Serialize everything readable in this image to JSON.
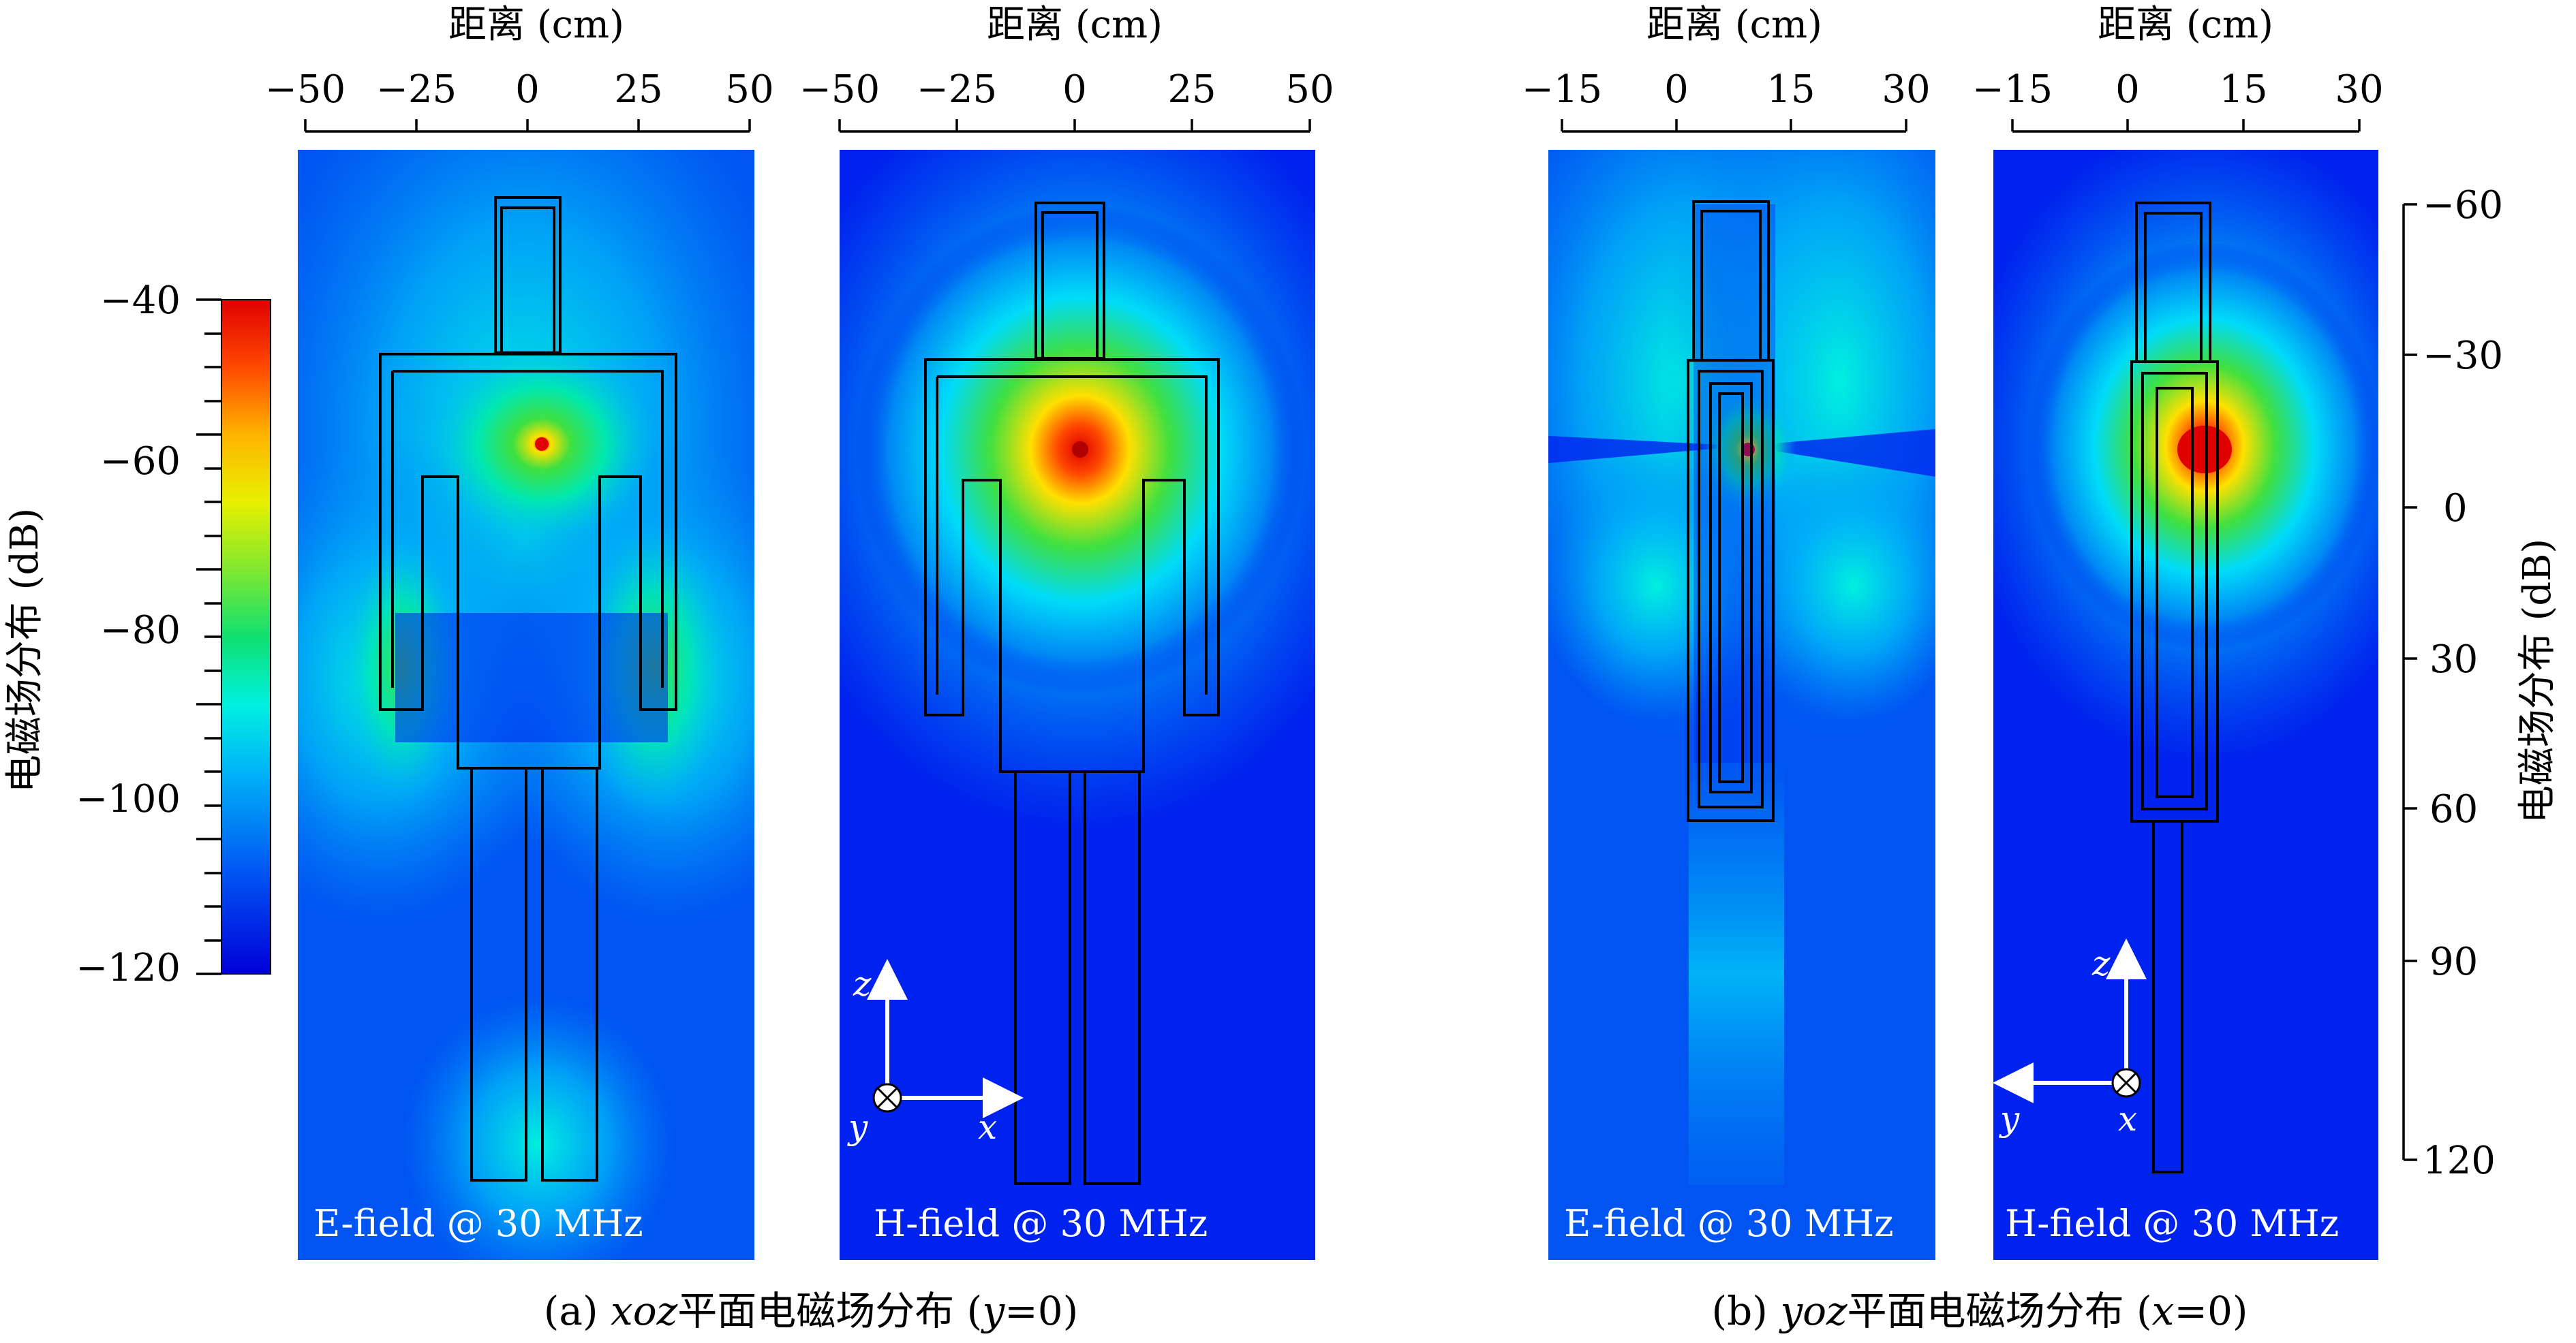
{
  "top_axes": [
    {
      "title": "距离 (cm)",
      "ticks": [
        "−50",
        "−25",
        "0",
        "25",
        "50"
      ]
    },
    {
      "title": "距离 (cm)",
      "ticks": [
        "−50",
        "−25",
        "0",
        "25",
        "50"
      ]
    },
    {
      "title": "距离 (cm)",
      "ticks": [
        "−15",
        "0",
        "15",
        "30"
      ]
    },
    {
      "title": "距离 (cm)",
      "ticks": [
        "−15",
        "0",
        "15",
        "30"
      ]
    }
  ],
  "colorbar": {
    "label": "电磁场分布 (dB)",
    "ticks": [
      "−40",
      "−60",
      "−80",
      "−100",
      "−120"
    ],
    "colors": [
      "#0000d8",
      "#0022ee",
      "#0055f2",
      "#0088f5",
      "#00b4f8",
      "#00dcf8",
      "#00f0e0",
      "#00e8b0",
      "#10e070",
      "#40e040",
      "#80e830",
      "#b8f020",
      "#e8f000",
      "#ffe000",
      "#ffb400",
      "#ff8000",
      "#ff4800",
      "#ff1000",
      "#e00000"
    ]
  },
  "right_axis": {
    "label": "电磁场分布 (dB)",
    "ticks": [
      "−60",
      "−30",
      "0",
      "30",
      "60",
      "90",
      "120"
    ]
  },
  "panels": [
    {
      "label": "E-field @ 30 MHz"
    },
    {
      "label": "H-field @ 30 MHz"
    },
    {
      "label": "E-field @ 30 MHz"
    },
    {
      "label": "H-field @ 30 MHz"
    }
  ],
  "coord_axes": [
    {
      "vertical": "z",
      "horizontal": "x",
      "out_of_plane": "y"
    },
    {
      "vertical": "z",
      "horizontal": "y",
      "out_of_plane": "x"
    }
  ],
  "captions": {
    "a": {
      "prefix": "(a) ",
      "italic": "xoz",
      "middle": "平面电磁场分布 (",
      "var": "y",
      "suffix": "=0)"
    },
    "b": {
      "prefix": "(b) ",
      "italic": "yoz",
      "middle": "平面电磁场分布 (",
      "var": "x",
      "suffix": "=0)"
    }
  }
}
